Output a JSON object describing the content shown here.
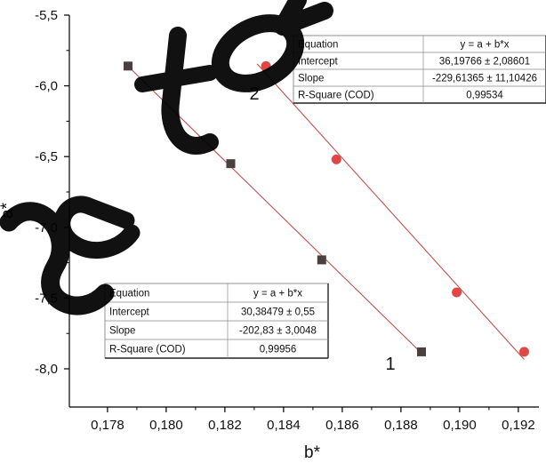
{
  "chart_data": {
    "type": "scatter",
    "xlabel": "b*",
    "ylabel": "a*",
    "xlim": [
      0.1767,
      0.1927
    ],
    "ylim": [
      -8.27,
      -5.5
    ],
    "x_ticks": [
      0.178,
      0.18,
      0.182,
      0.184,
      0.186,
      0.188,
      0.19,
      0.192
    ],
    "x_tick_labels": [
      "0,178",
      "0,180",
      "0,182",
      "0,184",
      "0,186",
      "0,188",
      "0,190",
      "0,192"
    ],
    "y_ticks": [
      -5.5,
      -6.0,
      -6.5,
      -7.0,
      -7.5,
      -8.0
    ],
    "y_tick_labels": [
      "-5,5",
      "-6,0",
      "-6,5",
      "-7,0",
      "-7,5",
      "-8,0"
    ],
    "grid": false,
    "series": [
      {
        "name": "1",
        "marker": "square",
        "color": "#4a4040",
        "fit_color": "#c0504d",
        "points": [
          [
            0.1787,
            -5.86
          ],
          [
            0.1822,
            -6.55
          ],
          [
            0.1853,
            -7.23
          ],
          [
            0.1887,
            -7.88
          ]
        ],
        "fit": {
          "intercept": 30.38479,
          "slope": -202.83,
          "x_range": [
            0.1787,
            0.1887
          ],
          "table": [
            [
              "Equation",
              "y = a + b*x"
            ],
            [
              "Intercept",
              "30,38479 ± 0,55"
            ],
            [
              "Slope",
              "-202,83 ± 3,0048"
            ],
            [
              "R-Square (COD)",
              "0,99956"
            ]
          ]
        }
      },
      {
        "name": "2",
        "marker": "circle",
        "color": "#e04848",
        "fit_color": "#c0504d",
        "points": [
          [
            0.1834,
            -5.86
          ],
          [
            0.1858,
            -6.52
          ],
          [
            0.1899,
            -7.46
          ],
          [
            0.1922,
            -7.88
          ]
        ],
        "fit": {
          "intercept": 36.19766,
          "slope": -229.61365,
          "x_range": [
            0.1831,
            0.1922
          ],
          "table": [
            [
              "Equation",
              "y = a + b*x"
            ],
            [
              "Intercept",
              "36,19766 ± 2,08601"
            ],
            [
              "Slope",
              "-229,61365 ± 11,10426"
            ],
            [
              "R-Square (COD)",
              "0,99534"
            ]
          ]
        }
      }
    ]
  },
  "watermark": {
    "text": "Sovetov",
    "color": "#000000"
  }
}
